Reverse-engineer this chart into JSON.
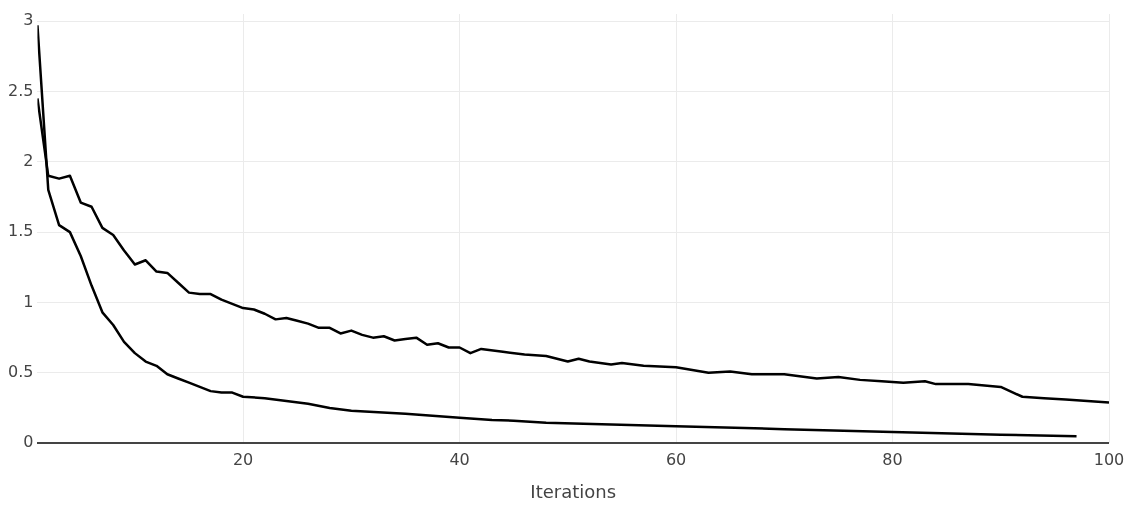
{
  "chart_data": {
    "type": "line",
    "xlabel": "Iterations",
    "xlim": [
      1,
      100
    ],
    "xticks": [
      20,
      40,
      60,
      80,
      100
    ],
    "ylim": [
      0,
      3.05
    ],
    "yticks": [
      0,
      0.5,
      1,
      1.5,
      2,
      2.5,
      3
    ],
    "grid": true,
    "legend": false,
    "marker": "none",
    "line_style": "solid",
    "series": [
      {
        "color": "#000000",
        "x": [
          1,
          2,
          3,
          4,
          5,
          6,
          7,
          8,
          9,
          10,
          11,
          12,
          13,
          14,
          15,
          16,
          17,
          18,
          19,
          20,
          21,
          22,
          23,
          24,
          25,
          26,
          27,
          28,
          29,
          30,
          31,
          32,
          33,
          34,
          35,
          36,
          37,
          38,
          39,
          40,
          41,
          42,
          44,
          46,
          48,
          50,
          51,
          52,
          54,
          55,
          57,
          60,
          63,
          65,
          67,
          70,
          73,
          75,
          77,
          79,
          81,
          83,
          84,
          87,
          90,
          92,
          94,
          96,
          98,
          100
        ],
        "values": [
          2.45,
          1.9,
          1.88,
          1.9,
          1.71,
          1.68,
          1.53,
          1.48,
          1.37,
          1.27,
          1.3,
          1.22,
          1.21,
          1.14,
          1.07,
          1.06,
          1.06,
          1.02,
          0.99,
          0.96,
          0.95,
          0.92,
          0.88,
          0.89,
          0.87,
          0.85,
          0.82,
          0.82,
          0.78,
          0.8,
          0.77,
          0.75,
          0.76,
          0.73,
          0.74,
          0.75,
          0.7,
          0.71,
          0.68,
          0.68,
          0.64,
          0.67,
          0.65,
          0.63,
          0.62,
          0.58,
          0.6,
          0.58,
          0.56,
          0.57,
          0.55,
          0.54,
          0.5,
          0.51,
          0.49,
          0.49,
          0.46,
          0.47,
          0.45,
          0.44,
          0.43,
          0.44,
          0.42,
          0.42,
          0.4,
          0.33,
          0.32,
          0.31,
          0.3,
          0.29
        ]
      },
      {
        "color": "#000000",
        "x": [
          1,
          2,
          3,
          4,
          5,
          6,
          7,
          8,
          9,
          10,
          11,
          12,
          13,
          14,
          15,
          16,
          17,
          18,
          19,
          20,
          22,
          24,
          26,
          28,
          30,
          35,
          40,
          43,
          45,
          48,
          60,
          70,
          80,
          90,
          97
        ],
        "values": [
          2.97,
          1.8,
          1.55,
          1.5,
          1.33,
          1.12,
          0.93,
          0.84,
          0.72,
          0.64,
          0.58,
          0.55,
          0.49,
          0.46,
          0.43,
          0.4,
          0.37,
          0.36,
          0.36,
          0.33,
          0.32,
          0.3,
          0.28,
          0.25,
          0.23,
          0.21,
          0.18,
          0.165,
          0.16,
          0.145,
          0.12,
          0.1,
          0.08,
          0.06,
          0.05
        ]
      }
    ]
  }
}
